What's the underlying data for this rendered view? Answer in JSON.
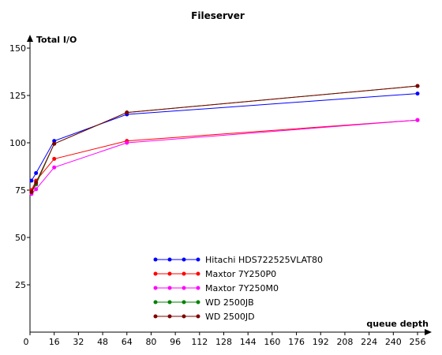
{
  "chart_data": {
    "type": "line",
    "title": "Fileserver",
    "xlabel": "queue depth",
    "ylabel": "Total I/O",
    "x_ticks": [
      0,
      16,
      32,
      48,
      64,
      80,
      96,
      112,
      128,
      144,
      160,
      176,
      192,
      208,
      224,
      240,
      256
    ],
    "y_ticks": [
      25,
      50,
      75,
      100,
      125,
      150
    ],
    "xlim": [
      0,
      264
    ],
    "ylim": [
      0,
      150
    ],
    "grid": false,
    "legend_position": "bottom-center",
    "x": [
      1,
      4,
      16,
      64,
      256
    ],
    "series": [
      {
        "name": "Hitachi HDS722525VLAT80",
        "color": "#0000ff",
        "values": [
          80,
          84,
          101,
          115,
          126
        ]
      },
      {
        "name": "Maxtor 7Y250P0",
        "color": "#ff0000",
        "values": [
          75,
          80,
          91.5,
          101,
          112
        ]
      },
      {
        "name": "Maxtor 7Y250M0",
        "color": "#ff00ff",
        "values": [
          73,
          75.5,
          87,
          100,
          112
        ]
      },
      {
        "name": "WD 2500JB",
        "color": "#008000",
        "values": [
          74,
          78,
          99.5,
          116,
          130
        ]
      },
      {
        "name": "WD 2500JD",
        "color": "#800000",
        "values": [
          74,
          79,
          99.5,
          116,
          130
        ]
      }
    ]
  }
}
